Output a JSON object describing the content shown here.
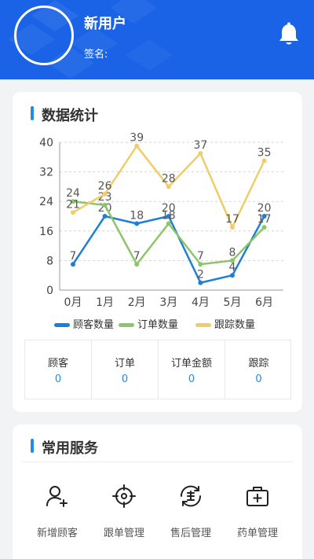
{
  "header": {
    "user_name": "新用户",
    "sign_label": "签名:",
    "bell_icon": "bell-icon",
    "background_color": "#1a63e6"
  },
  "stats_card": {
    "title": "数据统计",
    "summary": [
      {
        "label": "顾客",
        "value": "0"
      },
      {
        "label": "订单",
        "value": "0"
      },
      {
        "label": "订单金额",
        "value": "0"
      },
      {
        "label": "跟踪",
        "value": "0"
      }
    ]
  },
  "chart_data": {
    "type": "line",
    "categories": [
      "0月",
      "1月",
      "2月",
      "3月",
      "4月",
      "5月",
      "6月"
    ],
    "ylim": [
      0,
      40
    ],
    "yticks": [
      0,
      8,
      16,
      24,
      32,
      40
    ],
    "grid": true,
    "legend_position": "bottom",
    "series": [
      {
        "name": "顾客数量",
        "color": "#1f7fd6",
        "values": [
          7,
          20,
          18,
          20,
          2,
          4,
          20
        ]
      },
      {
        "name": "订单数量",
        "color": "#8fc56a",
        "values": [
          24,
          23,
          7,
          18,
          7,
          8,
          17
        ]
      },
      {
        "name": "跟踪数量",
        "color": "#f0cc6a",
        "values": [
          21,
          26,
          39,
          28,
          37,
          17,
          35
        ]
      }
    ]
  },
  "services_card": {
    "title": "常用服务",
    "items": [
      {
        "label": "新增顾客",
        "icon": "add-user-icon"
      },
      {
        "label": "跟单管理",
        "icon": "target-icon"
      },
      {
        "label": "售后管理",
        "icon": "after-sale-icon"
      },
      {
        "label": "药单管理",
        "icon": "medical-kit-icon"
      }
    ]
  }
}
